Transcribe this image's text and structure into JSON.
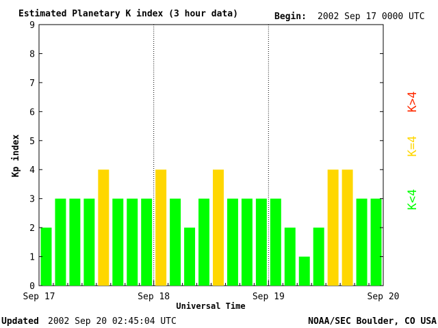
{
  "header": {
    "title": "Estimated Planetary K index (3 hour data)",
    "begin_label": "Begin:",
    "begin_value": "2002 Sep 17 0000 UTC"
  },
  "footer": {
    "updated_label": "Updated",
    "updated_value": "2002 Sep 20 02:45:04 UTC",
    "source": "NOAA/SEC Boulder, CO USA"
  },
  "legend": {
    "above": "K>4",
    "equal": "K=4",
    "below": "K<4"
  },
  "colors": {
    "below": "#00ff00",
    "equal": "#ffd700",
    "above": "#ff2a00",
    "axis": "#000000"
  },
  "chart_data": {
    "type": "bar",
    "title": "Estimated Planetary K index (3 hour data)",
    "xlabel": "Universal Time",
    "ylabel": "Kp index",
    "ylim": [
      0,
      9
    ],
    "yticks": [
      0,
      1,
      2,
      3,
      4,
      5,
      6,
      7,
      8,
      9
    ],
    "xticks": [
      "Sep 17",
      "Sep 18",
      "Sep 19",
      "Sep 20"
    ],
    "day_separators": true,
    "interval_hours": 3,
    "values": [
      2,
      3,
      3,
      3,
      4,
      3,
      3,
      3,
      4,
      3,
      2,
      3,
      4,
      3,
      3,
      3,
      3,
      2,
      1,
      2,
      4,
      4,
      3,
      3
    ]
  }
}
